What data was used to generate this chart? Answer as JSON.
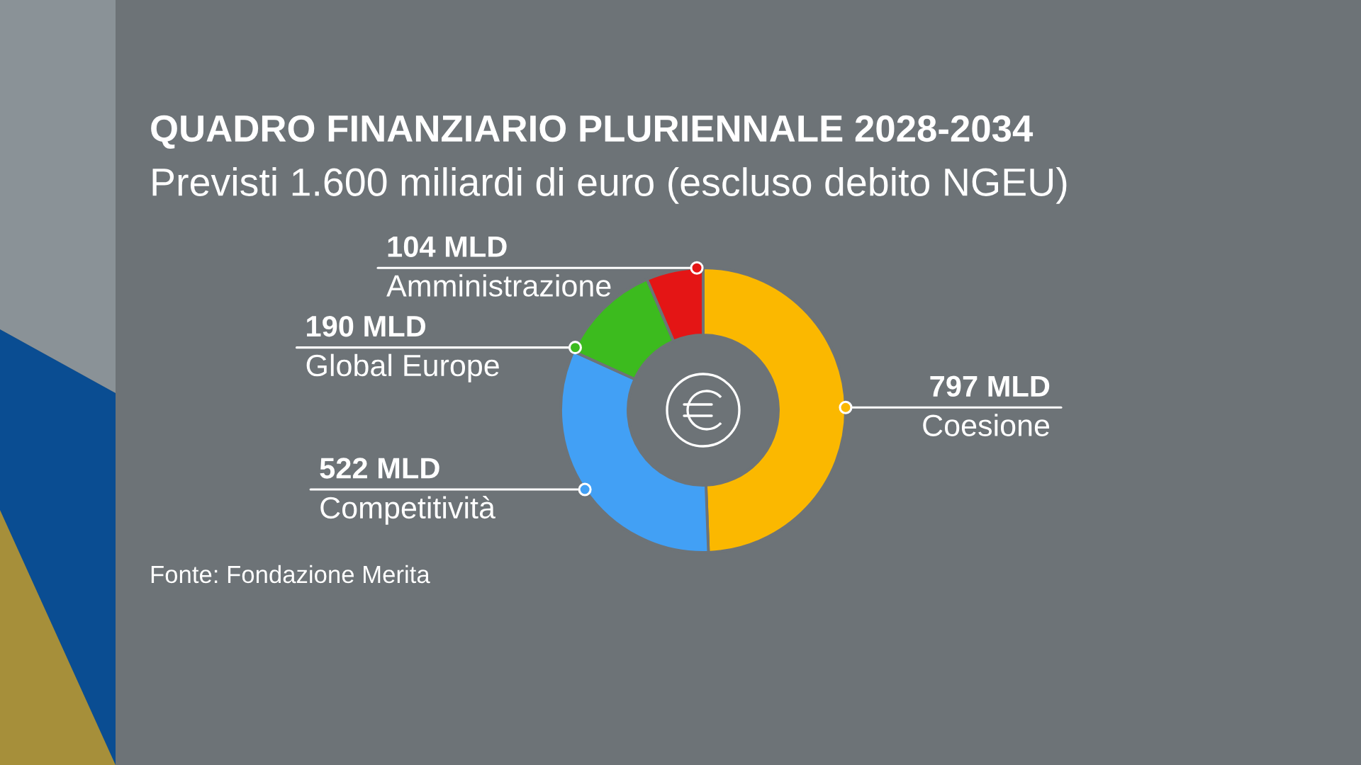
{
  "chart_data": {
    "type": "donut",
    "title": "QUADRO FINANZIARIO PLURIENNALE 2028-2034",
    "subtitle": "Previsti 1.600 miliardi di euro (escluso debito NGEU)",
    "categories": [
      "Coesione",
      "Competitività",
      "Global Europe",
      "Amministrazione"
    ],
    "values": [
      797,
      522,
      190,
      104
    ],
    "colors": [
      "#fbb800",
      "#42a0f5",
      "#3cbb1e",
      "#e41515"
    ],
    "value_labels": [
      "797 MLD",
      "522 MLD",
      "190 MLD",
      "104 MLD"
    ],
    "annotations": [
      "Fonte: Fondazione Merita"
    ]
  }
}
